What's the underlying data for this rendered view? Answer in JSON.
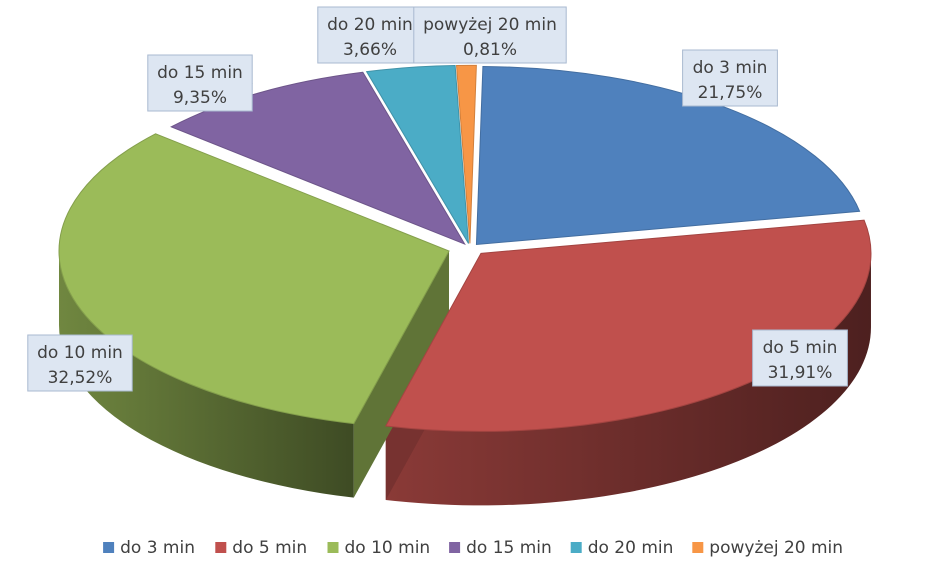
{
  "chart_data": {
    "type": "pie",
    "style": "3d-exploded",
    "categories": [
      "do 3 min",
      "do 5 min",
      "do 10 min",
      "do 15 min",
      "do 20 min",
      "powyżej 20 min"
    ],
    "values": [
      21.75,
      31.91,
      32.52,
      9.35,
      3.66,
      0.81
    ],
    "value_labels": [
      "21,75%",
      "31,91%",
      "32,52%",
      "9,35%",
      "3,66%",
      "0,81%"
    ],
    "colors": [
      "#4f81bd",
      "#c0504d",
      "#9bbb59",
      "#8064a2",
      "#4bacc6",
      "#f79646"
    ],
    "legend_position": "bottom"
  }
}
